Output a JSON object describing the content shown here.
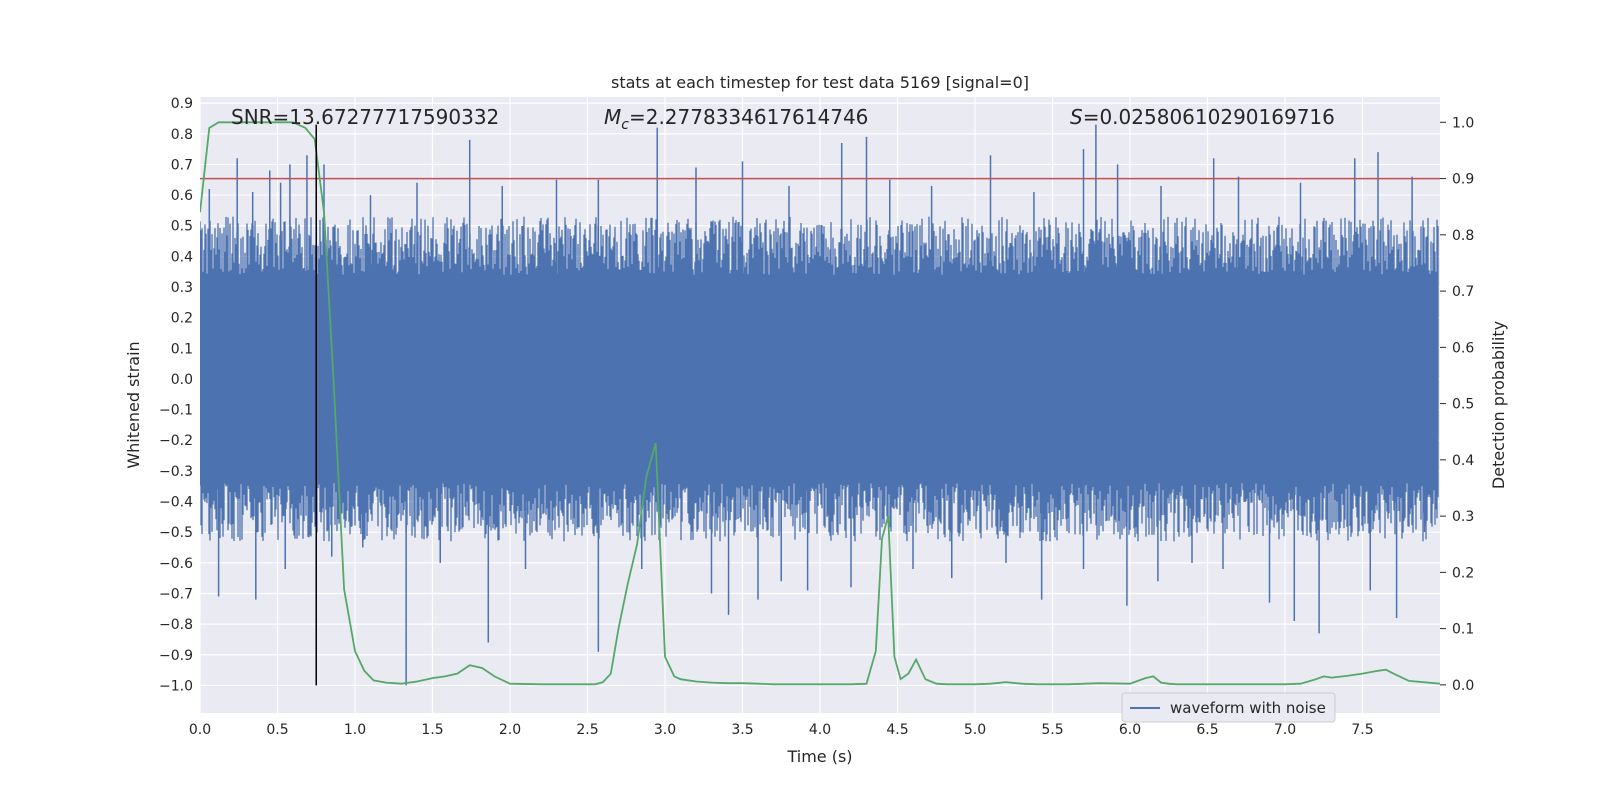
{
  "chart_data": {
    "type": "line",
    "title": "stats at each timestep for test data 5169 [signal=0]",
    "xlabel": "Time (s)",
    "ylabel_left": "Whitened strain",
    "ylabel_right": "Detection probability",
    "xlim": [
      0.0,
      8.0
    ],
    "ylim_left": [
      -1.09,
      0.92
    ],
    "ylim_right": [
      -0.05,
      1.045
    ],
    "x_ticks": [
      "0.0",
      "0.5",
      "1.0",
      "1.5",
      "2.0",
      "2.5",
      "3.0",
      "3.5",
      "4.0",
      "4.5",
      "5.0",
      "5.5",
      "6.0",
      "6.5",
      "7.0",
      "7.5"
    ],
    "y_ticks_left": [
      "0.9",
      "0.8",
      "0.7",
      "0.6",
      "0.5",
      "0.4",
      "0.3",
      "0.2",
      "0.1",
      "0.0",
      "−0.1",
      "−0.2",
      "−0.3",
      "−0.4",
      "−0.5",
      "−0.6",
      "−0.7",
      "−0.8",
      "−0.9",
      "−1.0"
    ],
    "y_ticks_right": [
      "1.0",
      "0.9",
      "0.8",
      "0.7",
      "0.6",
      "0.5",
      "0.4",
      "0.3",
      "0.2",
      "0.1",
      "0.0"
    ],
    "grid": true,
    "background": "#eaeaf2",
    "annotations": {
      "snr": "SNR=13.67277717590332",
      "mc_symbol": "M",
      "mc_sub": "c",
      "mc_value": "=2.2778334617614746",
      "s_symbol": "S",
      "s_value": "=0.02580610290169716"
    },
    "threshold": {
      "value": 0.9,
      "axis": "right",
      "color": "#c44e52"
    },
    "marker_line": {
      "x": 0.75,
      "y_from": -1.0,
      "y_to": 0.83,
      "color": "#000000"
    },
    "legend": {
      "position": "lower-right",
      "entries": [
        {
          "name": "waveform with noise",
          "color": "#4c72b0"
        }
      ]
    },
    "series": [
      {
        "name": "waveform with noise",
        "axis": "left",
        "color": "#4c72b0",
        "band": [
          -0.34,
          0.34
        ],
        "envelope_typical": [
          -0.45,
          0.45
        ],
        "peaks_up": [
          [
            0.06,
            0.62
          ],
          [
            0.24,
            0.72
          ],
          [
            0.34,
            0.61
          ],
          [
            0.45,
            0.68
          ],
          [
            0.52,
            0.64
          ],
          [
            0.58,
            0.7
          ],
          [
            0.69,
            0.73
          ],
          [
            0.8,
            0.7
          ],
          [
            1.1,
            0.6
          ],
          [
            1.4,
            0.64
          ],
          [
            1.74,
            0.78
          ],
          [
            1.95,
            0.63
          ],
          [
            2.3,
            0.65
          ],
          [
            2.57,
            0.65
          ],
          [
            2.95,
            0.82
          ],
          [
            3.2,
            0.69
          ],
          [
            3.5,
            0.71
          ],
          [
            3.8,
            0.63
          ],
          [
            4.14,
            0.77
          ],
          [
            4.3,
            0.79
          ],
          [
            4.45,
            0.65
          ],
          [
            4.72,
            0.63
          ],
          [
            5.1,
            0.73
          ],
          [
            5.38,
            0.61
          ],
          [
            5.7,
            0.75
          ],
          [
            5.78,
            0.83
          ],
          [
            5.92,
            0.7
          ],
          [
            6.2,
            0.63
          ],
          [
            6.54,
            0.72
          ],
          [
            6.7,
            0.66
          ],
          [
            7.1,
            0.64
          ],
          [
            7.45,
            0.72
          ],
          [
            7.6,
            0.74
          ],
          [
            7.82,
            0.66
          ]
        ],
        "peaks_down": [
          [
            0.12,
            -0.71
          ],
          [
            0.36,
            -0.72
          ],
          [
            0.55,
            -0.62
          ],
          [
            0.85,
            -0.58
          ],
          [
            1.05,
            -0.55
          ],
          [
            1.33,
            -1.0
          ],
          [
            1.55,
            -0.6
          ],
          [
            1.86,
            -0.86
          ],
          [
            2.1,
            -0.62
          ],
          [
            2.57,
            -0.89
          ],
          [
            2.85,
            -0.62
          ],
          [
            3.3,
            -0.7
          ],
          [
            3.41,
            -0.77
          ],
          [
            3.6,
            -0.72
          ],
          [
            3.75,
            -0.66
          ],
          [
            3.92,
            -0.69
          ],
          [
            4.2,
            -0.68
          ],
          [
            4.6,
            -0.62
          ],
          [
            4.85,
            -0.65
          ],
          [
            5.2,
            -0.6
          ],
          [
            5.43,
            -0.72
          ],
          [
            5.7,
            -0.62
          ],
          [
            5.98,
            -0.74
          ],
          [
            6.18,
            -0.66
          ],
          [
            6.4,
            -0.6
          ],
          [
            6.6,
            -0.62
          ],
          [
            6.9,
            -0.73
          ],
          [
            7.06,
            -0.79
          ],
          [
            7.22,
            -0.83
          ],
          [
            7.55,
            -0.69
          ],
          [
            7.72,
            -0.78
          ],
          [
            7.9,
            -0.5
          ]
        ]
      },
      {
        "name": "",
        "axis": "right",
        "color": "#55a868",
        "x": [
          0.0,
          0.06,
          0.12,
          0.2,
          0.3,
          0.4,
          0.5,
          0.6,
          0.68,
          0.74,
          0.8,
          0.86,
          0.93,
          1.0,
          1.06,
          1.12,
          1.2,
          1.3,
          1.4,
          1.5,
          1.58,
          1.66,
          1.74,
          1.82,
          1.9,
          2.0,
          2.2,
          2.4,
          2.55,
          2.6,
          2.65,
          2.7,
          2.76,
          2.82,
          2.88,
          2.94,
          3.0,
          3.06,
          3.1,
          3.2,
          3.3,
          3.4,
          3.5,
          3.6,
          3.7,
          3.8,
          3.9,
          4.0,
          4.1,
          4.2,
          4.3,
          4.36,
          4.4,
          4.44,
          4.48,
          4.52,
          4.57,
          4.62,
          4.68,
          4.75,
          4.82,
          4.9,
          5.0,
          5.1,
          5.2,
          5.3,
          5.4,
          5.6,
          5.8,
          6.0,
          6.1,
          6.15,
          6.2,
          6.25,
          6.3,
          6.4,
          6.6,
          6.8,
          7.0,
          7.1,
          7.15,
          7.2,
          7.25,
          7.3,
          7.4,
          7.5,
          7.6,
          7.65,
          7.7,
          7.8,
          8.0
        ],
        "y": [
          0.84,
          0.99,
          1.0,
          1.0,
          1.0,
          1.0,
          1.0,
          1.0,
          0.99,
          0.97,
          0.84,
          0.55,
          0.17,
          0.06,
          0.025,
          0.008,
          0.004,
          0.002,
          0.006,
          0.012,
          0.015,
          0.02,
          0.035,
          0.03,
          0.015,
          0.002,
          0.001,
          0.001,
          0.001,
          0.005,
          0.02,
          0.1,
          0.18,
          0.25,
          0.37,
          0.43,
          0.05,
          0.015,
          0.01,
          0.006,
          0.004,
          0.003,
          0.003,
          0.002,
          0.001,
          0.001,
          0.001,
          0.001,
          0.001,
          0.001,
          0.002,
          0.06,
          0.26,
          0.3,
          0.05,
          0.01,
          0.02,
          0.045,
          0.01,
          0.002,
          0.001,
          0.001,
          0.001,
          0.002,
          0.005,
          0.002,
          0.001,
          0.001,
          0.003,
          0.002,
          0.012,
          0.015,
          0.004,
          0.002,
          0.001,
          0.001,
          0.001,
          0.001,
          0.001,
          0.002,
          0.006,
          0.01,
          0.015,
          0.013,
          0.016,
          0.02,
          0.025,
          0.027,
          0.02,
          0.007,
          0.002
        ]
      }
    ]
  }
}
